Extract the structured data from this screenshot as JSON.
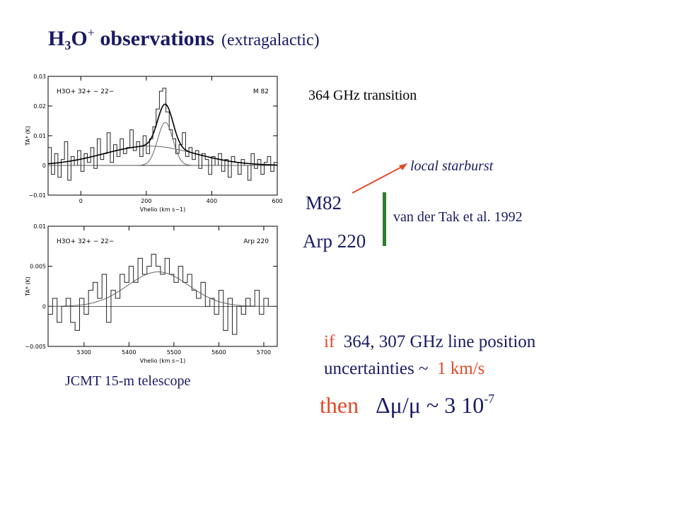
{
  "title": {
    "main_pre": "H",
    "main_sub": "3",
    "main_mid": "O",
    "main_sup": "+",
    "main_post": " observations",
    "paren": "(extragalactic)"
  },
  "transition_label": "364 GHz transition",
  "local_starburst": "local starburst",
  "galaxy_m82": "M82",
  "galaxy_arp220": "Arp 220",
  "reference": "van der Tak et al. 1992",
  "telescope": "JCMT 15-m telescope",
  "condition": {
    "if_word": "if",
    "line1_rest": "364, 307 GHz line position",
    "line2_pre": "uncertainties  ~",
    "line2_val": "1 km/s"
  },
  "result": {
    "then_word": "then",
    "expr": "Δμ/μ  ~  3 10",
    "exponent": "-7"
  },
  "colors": {
    "title_blue": "#1a1a66",
    "red_accent": "#e04a2a",
    "green_bar": "#2e7d32"
  },
  "chart_data": [
    {
      "type": "line",
      "label_left": "H3O+ 32+ − 22−",
      "label_right": "M 82",
      "xlabel": "Vhelio (km s−1)",
      "ylabel": "TA* (K)",
      "xlim": [
        -100,
        600
      ],
      "ylim": [
        -0.01,
        0.03
      ],
      "x_ticks": [
        "0",
        "200",
        "400",
        "600"
      ],
      "y_ticks": [
        "−0.01",
        "0",
        "0.01",
        "0.02",
        "0.03"
      ],
      "series": [
        {
          "style": "histogram",
          "x": [
            -100,
            -90,
            -80,
            -70,
            -60,
            -50,
            -40,
            -30,
            -20,
            -10,
            0,
            10,
            20,
            30,
            40,
            50,
            60,
            70,
            80,
            90,
            100,
            110,
            120,
            130,
            140,
            150,
            160,
            170,
            180,
            190,
            200,
            210,
            220,
            230,
            240,
            250,
            260,
            270,
            280,
            290,
            300,
            310,
            320,
            330,
            340,
            350,
            360,
            370,
            380,
            390,
            400,
            410,
            420,
            430,
            440,
            450,
            460,
            470,
            480,
            490,
            500,
            510,
            520,
            530,
            540,
            550,
            560,
            570,
            580,
            590
          ],
          "y": [
            0.006,
            -0.003,
            0.004,
            -0.004,
            0.002,
            0.008,
            -0.005,
            0.003,
            0.0,
            0.005,
            -0.002,
            0.004,
            0.001,
            0.006,
            -0.001,
            0.009,
            0.002,
            0.004,
            0.011,
            0.001,
            0.007,
            0.003,
            0.009,
            0.004,
            0.006,
            0.012,
            0.005,
            0.008,
            0.003,
            0.01,
            0.004,
            0.009,
            0.013,
            0.019,
            0.025,
            0.026,
            0.018,
            0.012,
            0.009,
            0.004,
            0.007,
            0.011,
            0.003,
            0.006,
            0.002,
            0.005,
            -0.001,
            0.004,
            0.002,
            -0.003,
            0.003,
            0.0,
            0.004,
            -0.002,
            0.002,
            -0.004,
            0.003,
            0.001,
            -0.003,
            0.002,
            0.0,
            -0.005,
            0.004,
            -0.001,
            0.002,
            -0.003,
            0.001,
            0.003,
            -0.002,
            0.001
          ]
        },
        {
          "style": "gaussian",
          "amplitude": 0.0065,
          "center": 210,
          "fwhm": 330
        },
        {
          "style": "gaussian",
          "amplitude": 0.0145,
          "center": 258,
          "fwhm": 55
        },
        {
          "style": "sum"
        }
      ]
    },
    {
      "type": "line",
      "label_left": "H3O+ 32+ − 22−",
      "label_right": "Arp 220",
      "xlabel": "Vhelio (km s−1)",
      "ylabel": "TA* (K)",
      "xlim": [
        5220,
        5730
      ],
      "ylim": [
        -0.005,
        0.01
      ],
      "x_ticks": [
        "5300",
        "5400",
        "5500",
        "5600",
        "5700"
      ],
      "y_ticks": [
        "−0.005",
        "0",
        "0.005",
        "0.01"
      ],
      "series": [
        {
          "style": "histogram",
          "x": [
            5220,
            5230,
            5240,
            5250,
            5260,
            5270,
            5280,
            5290,
            5300,
            5310,
            5320,
            5330,
            5340,
            5350,
            5360,
            5370,
            5380,
            5390,
            5400,
            5410,
            5420,
            5430,
            5440,
            5450,
            5460,
            5470,
            5480,
            5490,
            5500,
            5510,
            5520,
            5530,
            5540,
            5550,
            5560,
            5570,
            5580,
            5590,
            5600,
            5610,
            5620,
            5630,
            5640,
            5650,
            5660,
            5670,
            5680,
            5690,
            5700,
            5710,
            5720
          ],
          "y": [
            -0.001,
            0.001,
            -0.002,
            0.0,
            0.001,
            -0.002,
            -0.003,
            0.001,
            -0.001,
            0.002,
            0.003,
            0.001,
            0.004,
            -0.002,
            0.002,
            0.001,
            0.004,
            0.003,
            0.005,
            0.003,
            0.006,
            0.004,
            0.005,
            0.0065,
            0.005,
            0.004,
            0.006,
            0.004,
            0.003,
            0.005,
            0.003,
            0.004,
            0.002,
            0.001,
            0.003,
            0.0,
            0.001,
            -0.001,
            0.002,
            -0.003,
            0.001,
            -0.0035,
            0.0,
            -0.001,
            0.001,
            0.0,
            0.002,
            -0.001,
            0.001,
            0.0,
            0.0
          ]
        },
        {
          "style": "gaussian",
          "amplitude": 0.0043,
          "center": 5465,
          "fwhm": 160
        }
      ]
    }
  ]
}
